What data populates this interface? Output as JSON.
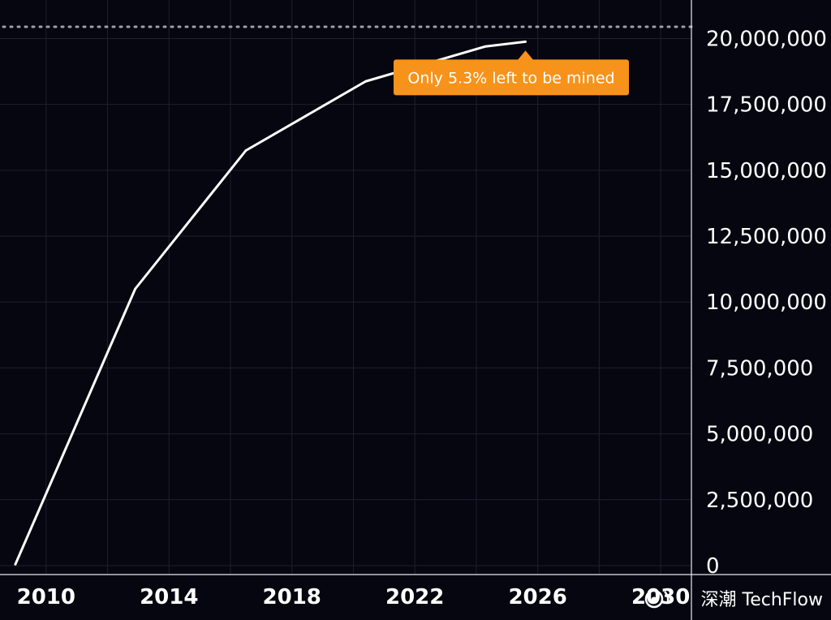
{
  "chart_data": {
    "type": "line",
    "title": "",
    "xlabel": "",
    "ylabel": "",
    "xlim": [
      2008.5,
      2031
    ],
    "ylim": [
      0,
      21000000
    ],
    "x_ticks": [
      {
        "value": 2010,
        "label": "2010"
      },
      {
        "value": 2014,
        "label": "2014"
      },
      {
        "value": 2018,
        "label": "2018"
      },
      {
        "value": 2022,
        "label": "2022"
      },
      {
        "value": 2026,
        "label": "2026"
      },
      {
        "value": 2030,
        "label": "2030"
      }
    ],
    "y_ticks": [
      {
        "value": 0,
        "label": "0"
      },
      {
        "value": 2500000,
        "label": "2,500,000"
      },
      {
        "value": 5000000,
        "label": "5,000,000"
      },
      {
        "value": 7500000,
        "label": "7,500,000"
      },
      {
        "value": 10000000,
        "label": "10,000,000"
      },
      {
        "value": 12500000,
        "label": "12,500,000"
      },
      {
        "value": 15000000,
        "label": "15,000,000"
      },
      {
        "value": 17500000,
        "label": "17,500,000"
      },
      {
        "value": 20000000,
        "label": "20,000,000"
      }
    ],
    "grid": true,
    "y_axis_position": "right",
    "reference_line": {
      "value": 21000000,
      "style": "dotted"
    },
    "series": [
      {
        "x": [
          2009.0,
          2012.9,
          2016.5,
          2020.4,
          2024.3,
          2025.6
        ],
        "values": [
          50000,
          10500000,
          15750000,
          18375000,
          19700000,
          19880000
        ],
        "color": "#ffffff"
      }
    ],
    "annotations": [
      {
        "text": "Only 5.3% left to be mined",
        "x": 2025.6,
        "y": 19880000,
        "color": "#f7931a"
      }
    ]
  },
  "watermark": {
    "text": "深潮 TechFlow",
    "icon": "weibo-icon"
  },
  "colors": {
    "background": "#05060f",
    "grid": "#1c2030",
    "line": "#ffffff",
    "annotation": "#f7931a",
    "axis_text": "#ffffff"
  }
}
